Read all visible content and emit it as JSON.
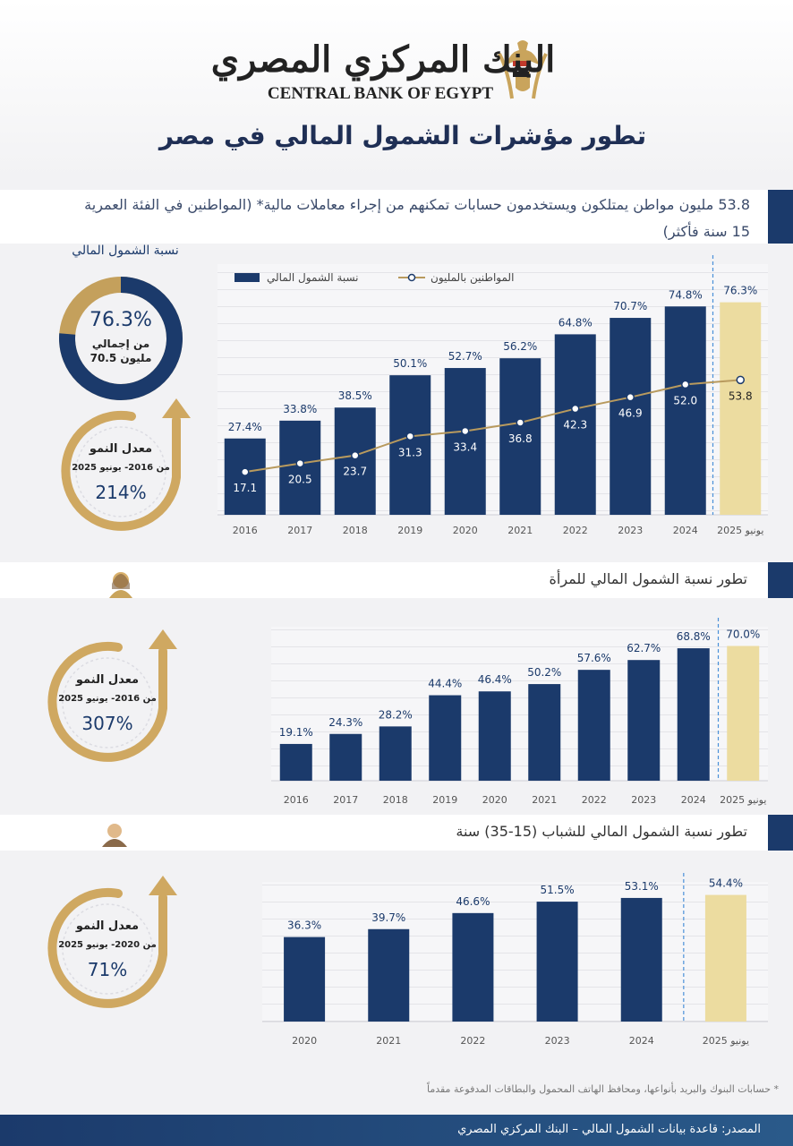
{
  "header": {
    "logo_ar": "البنك المركزي المصري",
    "logo_en": "CENTRAL BANK OF EGYPT",
    "title": "تطور مؤشرات الشمول المالي في مصر"
  },
  "intro": "53.8 مليون مواطن يمتلكون ويستخدمون حسابات تمكنهم من إجراء معاملات مالية* (المواطنين في الفئة العمرية 15 سنة فأكثر)",
  "donut": {
    "title": "نسبة الشمول المالي",
    "value": 76.3,
    "value_label": "76.3%",
    "caption_1": "من إجمالي",
    "caption_2": "70.5 مليون",
    "color": "#1b3a6b",
    "rest_color": "#c4a05c"
  },
  "growth": [
    {
      "title": "معدل النمو",
      "period": "من 2016- يونيو 2025",
      "value": "214%"
    },
    {
      "title": "معدل النمو",
      "period": "من 2016- يونيو 2025",
      "value": "307%"
    },
    {
      "title": "معدل النمو",
      "period": "من 2020- يونيو 2025",
      "value": "71%"
    }
  ],
  "chart_data": [
    {
      "type": "bar",
      "categories": [
        "2016",
        "2017",
        "2018",
        "2019",
        "2020",
        "2021",
        "2022",
        "2023",
        "2024",
        "يونيو 2025"
      ],
      "ylim": [
        0,
        90
      ],
      "y2lim": [
        0,
        100
      ],
      "series": [
        {
          "name": "نسبة الشمول المالي",
          "type": "bar",
          "color": "#1b3a6b",
          "colors": [
            "#1b3a6b",
            "#1b3a6b",
            "#1b3a6b",
            "#1b3a6b",
            "#1b3a6b",
            "#1b3a6b",
            "#1b3a6b",
            "#1b3a6b",
            "#1b3a6b",
            "#ecdca0"
          ],
          "values": [
            27.4,
            33.8,
            38.5,
            50.1,
            52.7,
            56.2,
            64.8,
            70.7,
            74.8,
            76.3
          ],
          "value_labels": [
            "27.4%",
            "33.8%",
            "38.5%",
            "50.1%",
            "52.7%",
            "56.2%",
            "64.8%",
            "70.7%",
            "74.8%",
            "76.3%"
          ]
        },
        {
          "name": "المواطنين بالمليون",
          "type": "line",
          "axis": "y2",
          "color": "#b89a5e",
          "values": [
            17.1,
            20.5,
            23.7,
            31.3,
            33.4,
            36.8,
            42.3,
            46.9,
            52.0,
            53.8
          ],
          "value_labels": [
            "17.1",
            "20.5",
            "23.7",
            "31.3",
            "33.4",
            "36.8",
            "42.3",
            "46.9",
            "52.0",
            "53.8"
          ]
        }
      ]
    },
    {
      "type": "bar",
      "title": "تطور نسبة الشمول المالي للمرأة",
      "categories": [
        "2016",
        "2017",
        "2018",
        "2019",
        "2020",
        "2021",
        "2022",
        "2023",
        "2024",
        "يونيو 2025"
      ],
      "ylim": [
        0,
        80
      ],
      "color": "#1b3a6b",
      "colors": [
        "#1b3a6b",
        "#1b3a6b",
        "#1b3a6b",
        "#1b3a6b",
        "#1b3a6b",
        "#1b3a6b",
        "#1b3a6b",
        "#1b3a6b",
        "#1b3a6b",
        "#ecdca0"
      ],
      "values": [
        19.1,
        24.3,
        28.2,
        44.4,
        46.4,
        50.2,
        57.6,
        62.7,
        68.8,
        70.0
      ],
      "value_labels": [
        "19.1%",
        "24.3%",
        "28.2%",
        "44.4%",
        "46.4%",
        "50.2%",
        "57.6%",
        "62.7%",
        "68.8%",
        "70.0%"
      ]
    },
    {
      "type": "bar",
      "title": "تطور نسبة الشمول المالي للشباب (15-35) سنة",
      "categories": [
        "2020",
        "2021",
        "2022",
        "2023",
        "2024",
        "يونيو 2025"
      ],
      "ylim": [
        0,
        60
      ],
      "color": "#1b3a6b",
      "colors": [
        "#1b3a6b",
        "#1b3a6b",
        "#1b3a6b",
        "#1b3a6b",
        "#1b3a6b",
        "#ecdca0"
      ],
      "values": [
        36.3,
        39.7,
        46.6,
        51.5,
        53.1,
        54.4
      ],
      "value_labels": [
        "36.3%",
        "39.7%",
        "46.6%",
        "51.5%",
        "53.1%",
        "54.4%"
      ]
    }
  ],
  "footnote": "* حسابات البنوك والبريد بأنواعها، ومحافظ الهاتف المحمول والبطاقات المدفوعة مقدماً",
  "source": "المصدر: قاعدة بيانات الشمول المالي – البنك المركزي المصري"
}
